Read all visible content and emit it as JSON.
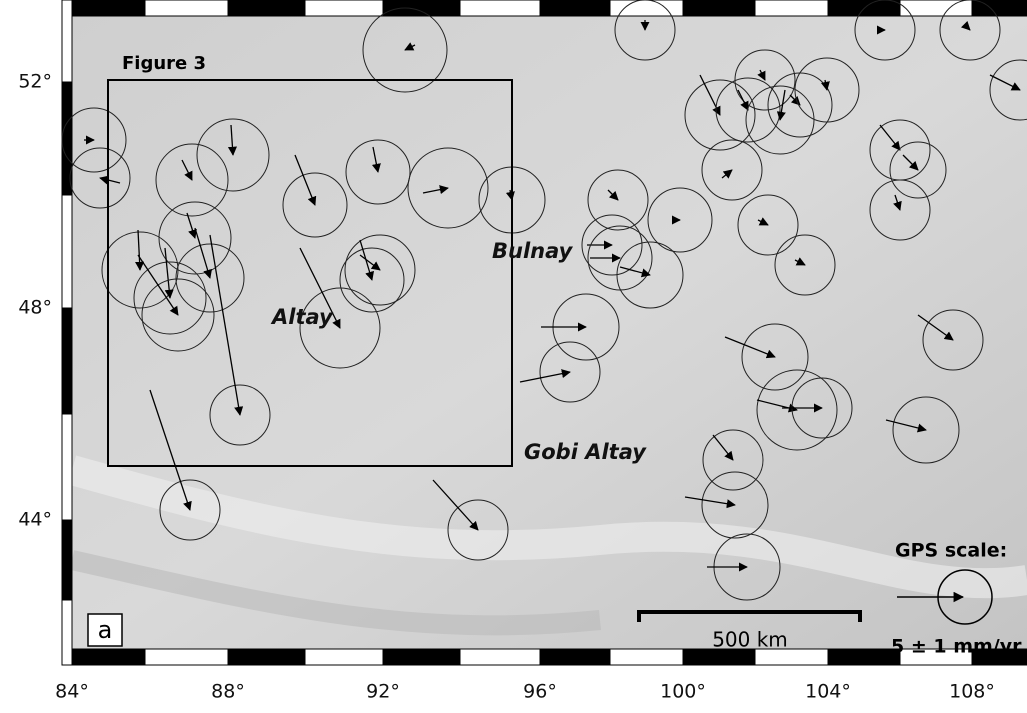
{
  "map": {
    "x_labels": [
      "84°",
      "88°",
      "92°",
      "96°",
      "100°",
      "104°",
      "108°"
    ],
    "y_labels": [
      "52°",
      "48°",
      "44°"
    ],
    "inset_label": "Figure 3",
    "place_labels": [
      "Bulnay",
      "Altay",
      "Gobi Altay"
    ],
    "scale_bar": "500 km",
    "gps_scale": {
      "title": "GPS scale:",
      "value": "5 ± 1 mm/yr"
    },
    "panel": "a"
  }
}
